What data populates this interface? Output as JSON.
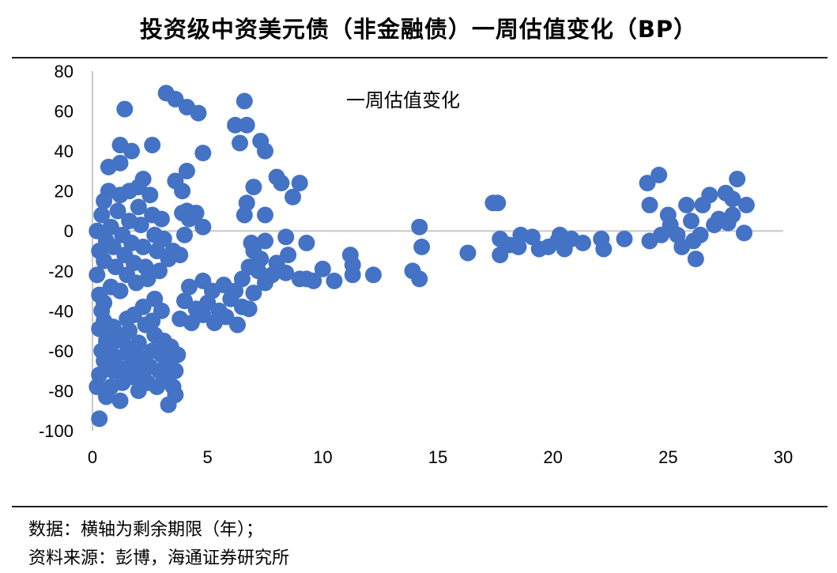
{
  "title": "投资级中资美元债（非金融债）一周估值变化（BP）",
  "notes": {
    "line1": "数据：横轴为剩余期限（年）；",
    "line2": "资料来源：彭博，海通证券研究所"
  },
  "chart_data": {
    "type": "scatter",
    "in_plot_label": "一周估值变化",
    "xlim": [
      0,
      30
    ],
    "ylim": [
      -100,
      80
    ],
    "xticks": [
      "0",
      "5",
      "10",
      "15",
      "20",
      "25",
      "30"
    ],
    "yticks": [
      "80",
      "60",
      "40",
      "20",
      "0",
      "-20",
      "-40",
      "-60",
      "-80",
      "-100"
    ],
    "grid": false,
    "marker_color": "#4472C4",
    "series": [
      {
        "points": [
          [
            0.3,
            -94
          ],
          [
            0.2,
            -78
          ],
          [
            0.3,
            -72
          ],
          [
            0.5,
            -65
          ],
          [
            0.4,
            -60
          ],
          [
            0.6,
            -55
          ],
          [
            0.3,
            -49
          ],
          [
            0.5,
            -45
          ],
          [
            0.4,
            -40
          ],
          [
            0.3,
            -32
          ],
          [
            0.5,
            -36
          ],
          [
            0.6,
            -83
          ],
          [
            0.8,
            -78
          ],
          [
            0.9,
            -70
          ],
          [
            1.0,
            -63
          ],
          [
            0.8,
            -57
          ],
          [
            1.1,
            -52
          ],
          [
            0.9,
            -48
          ],
          [
            1.2,
            -85
          ],
          [
            1.3,
            -76
          ],
          [
            1.4,
            -69
          ],
          [
            1.5,
            -61
          ],
          [
            1.3,
            -55
          ],
          [
            1.6,
            -50
          ],
          [
            1.7,
            -73
          ],
          [
            1.8,
            -66
          ],
          [
            1.9,
            -58
          ],
          [
            2.0,
            -80
          ],
          [
            2.1,
            -72
          ],
          [
            2.2,
            -64
          ],
          [
            2.0,
            -56
          ],
          [
            2.3,
            -47
          ],
          [
            2.4,
            -76
          ],
          [
            2.5,
            -68
          ],
          [
            2.6,
            -60
          ],
          [
            2.7,
            -52
          ],
          [
            2.8,
            -78
          ],
          [
            2.9,
            -70
          ],
          [
            3.0,
            -62
          ],
          [
            3.1,
            -55
          ],
          [
            3.2,
            -74
          ],
          [
            3.3,
            -66
          ],
          [
            3.4,
            -58
          ],
          [
            3.5,
            -78
          ],
          [
            3.6,
            -70
          ],
          [
            3.7,
            -62
          ],
          [
            3.3,
            -87
          ],
          [
            3.6,
            -82
          ],
          [
            1.5,
            -44
          ],
          [
            2.6,
            -45
          ],
          [
            3.0,
            -40
          ],
          [
            2.2,
            -38
          ],
          [
            1.8,
            -42
          ],
          [
            2.7,
            -34
          ],
          [
            0.2,
            0
          ],
          [
            0.3,
            -10
          ],
          [
            0.2,
            -22
          ],
          [
            0.4,
            8
          ],
          [
            0.5,
            15
          ],
          [
            0.6,
            -5
          ],
          [
            0.5,
            -15
          ],
          [
            0.7,
            20
          ],
          [
            0.8,
            2
          ],
          [
            0.9,
            -8
          ],
          [
            1.0,
            -18
          ],
          [
            0.8,
            -28
          ],
          [
            1.1,
            10
          ],
          [
            1.2,
            18
          ],
          [
            1.3,
            -2
          ],
          [
            1.4,
            -12
          ],
          [
            1.5,
            -22
          ],
          [
            1.2,
            -30
          ],
          [
            1.6,
            5
          ],
          [
            1.7,
            -6
          ],
          [
            1.8,
            -16
          ],
          [
            1.9,
            -26
          ],
          [
            2.0,
            12
          ],
          [
            2.1,
            3
          ],
          [
            2.2,
            -8
          ],
          [
            2.3,
            -18
          ],
          [
            2.4,
            -24
          ],
          [
            2.5,
            18
          ],
          [
            2.6,
            8
          ],
          [
            2.7,
            -2
          ],
          [
            2.8,
            -10
          ],
          [
            2.9,
            -20
          ],
          [
            3.0,
            6
          ],
          [
            3.1,
            -4
          ],
          [
            3.3,
            -14
          ],
          [
            3.5,
            -10
          ],
          [
            3.8,
            -12
          ],
          [
            4.0,
            -2
          ],
          [
            4.1,
            10
          ],
          [
            3.6,
            25
          ],
          [
            3.9,
            20
          ],
          [
            2.0,
            22
          ],
          [
            2.2,
            26
          ],
          [
            1.6,
            20
          ],
          [
            0.7,
            32
          ],
          [
            1.2,
            34
          ],
          [
            1.2,
            43
          ],
          [
            1.7,
            40
          ],
          [
            2.6,
            43
          ],
          [
            1.4,
            61
          ],
          [
            3.2,
            69
          ],
          [
            3.6,
            66
          ],
          [
            4.1,
            62
          ],
          [
            4.6,
            59
          ],
          [
            4.8,
            39
          ],
          [
            4.1,
            30
          ],
          [
            6.6,
            65
          ],
          [
            6.2,
            53
          ],
          [
            6.7,
            53
          ],
          [
            6.4,
            44
          ],
          [
            7.3,
            45
          ],
          [
            7.5,
            40
          ],
          [
            8.2,
            24
          ],
          [
            8.0,
            27
          ],
          [
            8.7,
            17
          ],
          [
            9.0,
            24
          ],
          [
            7.0,
            22
          ],
          [
            6.7,
            14
          ],
          [
            6.6,
            8
          ],
          [
            7.5,
            8
          ],
          [
            8.4,
            -3
          ],
          [
            9.3,
            -6
          ],
          [
            8.5,
            -12
          ],
          [
            8.0,
            -16
          ],
          [
            7.8,
            -22
          ],
          [
            8.4,
            -21
          ],
          [
            9.0,
            -24
          ],
          [
            9.3,
            -24
          ],
          [
            9.6,
            -25
          ],
          [
            10.0,
            -19
          ],
          [
            10.5,
            -25
          ],
          [
            4.8,
            2
          ],
          [
            4.5,
            9
          ],
          [
            4.2,
            6
          ],
          [
            3.9,
            9
          ],
          [
            4.2,
            -28
          ],
          [
            4.8,
            -25
          ],
          [
            5.2,
            -30
          ],
          [
            5.7,
            -27
          ],
          [
            6.2,
            -30
          ],
          [
            6.5,
            -24
          ],
          [
            4.0,
            -35
          ],
          [
            4.5,
            -39
          ],
          [
            5.0,
            -36
          ],
          [
            5.5,
            -40
          ],
          [
            6.0,
            -34
          ],
          [
            6.5,
            -38
          ],
          [
            7.0,
            -31
          ],
          [
            7.5,
            -26
          ],
          [
            3.8,
            -44
          ],
          [
            4.3,
            -46
          ],
          [
            4.8,
            -42
          ],
          [
            5.3,
            -46
          ],
          [
            5.8,
            -43
          ],
          [
            6.3,
            -47
          ],
          [
            6.8,
            -39
          ],
          [
            7.0,
            -10
          ],
          [
            7.3,
            -14
          ],
          [
            7.5,
            -5
          ],
          [
            7.2,
            -20
          ],
          [
            6.8,
            -18
          ],
          [
            6.9,
            -6
          ],
          [
            11.2,
            -12
          ],
          [
            11.3,
            -17
          ],
          [
            11.3,
            -22
          ],
          [
            12.2,
            -22
          ],
          [
            13.9,
            -20
          ],
          [
            14.2,
            -24
          ],
          [
            14.2,
            2
          ],
          [
            14.3,
            -8
          ],
          [
            16.3,
            -11
          ],
          [
            17.4,
            14
          ],
          [
            17.6,
            14
          ],
          [
            17.7,
            -4
          ],
          [
            17.7,
            -12
          ],
          [
            18.1,
            -7
          ],
          [
            18.6,
            -2
          ],
          [
            18.5,
            -8
          ],
          [
            19.1,
            -3
          ],
          [
            19.4,
            -9
          ],
          [
            19.8,
            -8
          ],
          [
            20.2,
            -5
          ],
          [
            20.3,
            -2
          ],
          [
            20.5,
            -9
          ],
          [
            20.8,
            -4
          ],
          [
            21.3,
            -6
          ],
          [
            22.1,
            -4
          ],
          [
            22.2,
            -9
          ],
          [
            23.1,
            -4
          ],
          [
            24.1,
            24
          ],
          [
            24.2,
            13
          ],
          [
            24.6,
            28
          ],
          [
            24.2,
            -5
          ],
          [
            24.7,
            -2
          ],
          [
            25.0,
            8
          ],
          [
            25.1,
            3
          ],
          [
            25.4,
            -2
          ],
          [
            25.6,
            -8
          ],
          [
            25.8,
            13
          ],
          [
            26.0,
            5
          ],
          [
            26.1,
            -5
          ],
          [
            26.2,
            -14
          ],
          [
            26.4,
            -2
          ],
          [
            26.5,
            13
          ],
          [
            26.8,
            18
          ],
          [
            27.0,
            3
          ],
          [
            27.2,
            6
          ],
          [
            27.5,
            19
          ],
          [
            27.6,
            4
          ],
          [
            27.8,
            8
          ],
          [
            27.8,
            16
          ],
          [
            28.0,
            26
          ],
          [
            28.4,
            13
          ],
          [
            28.3,
            -1
          ]
        ]
      }
    ]
  }
}
